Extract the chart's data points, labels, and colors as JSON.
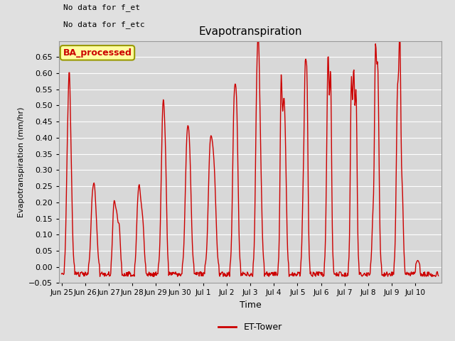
{
  "title": "Evapotranspiration",
  "ylabel": "Evapotranspiration (mm/hr)",
  "xlabel": "Time",
  "ylim": [
    -0.05,
    0.7
  ],
  "yticks": [
    -0.05,
    0.0,
    0.05,
    0.1,
    0.15,
    0.2,
    0.25,
    0.3,
    0.35,
    0.4,
    0.45,
    0.5,
    0.55,
    0.6,
    0.65
  ],
  "line_color": "#cc0000",
  "line_width": 1.0,
  "background_color": "#e0e0e0",
  "axes_bg_color": "#d8d8d8",
  "grid_color": "#ffffff",
  "legend_label": "ET-Tower",
  "legend_box_facecolor": "#ffffa0",
  "legend_box_edgecolor": "#999900",
  "legend_text_color": "#cc0000",
  "annotation1": "No data for f_et",
  "annotation2": "No data for f_etc",
  "watermark": "BA_processed",
  "xtick_labels": [
    "Jun 25",
    "Jun 26",
    "Jun 27",
    "Jun 28",
    "Jun 29",
    "Jun 30",
    "Jul 1",
    "Jul 2",
    "Jul 3",
    "Jul 4",
    "Jul 5",
    "Jul 6",
    "Jul 7",
    "Jul 8",
    "Jul 9",
    "Jul 10"
  ],
  "figsize": [
    6.4,
    4.8
  ],
  "dpi": 100
}
